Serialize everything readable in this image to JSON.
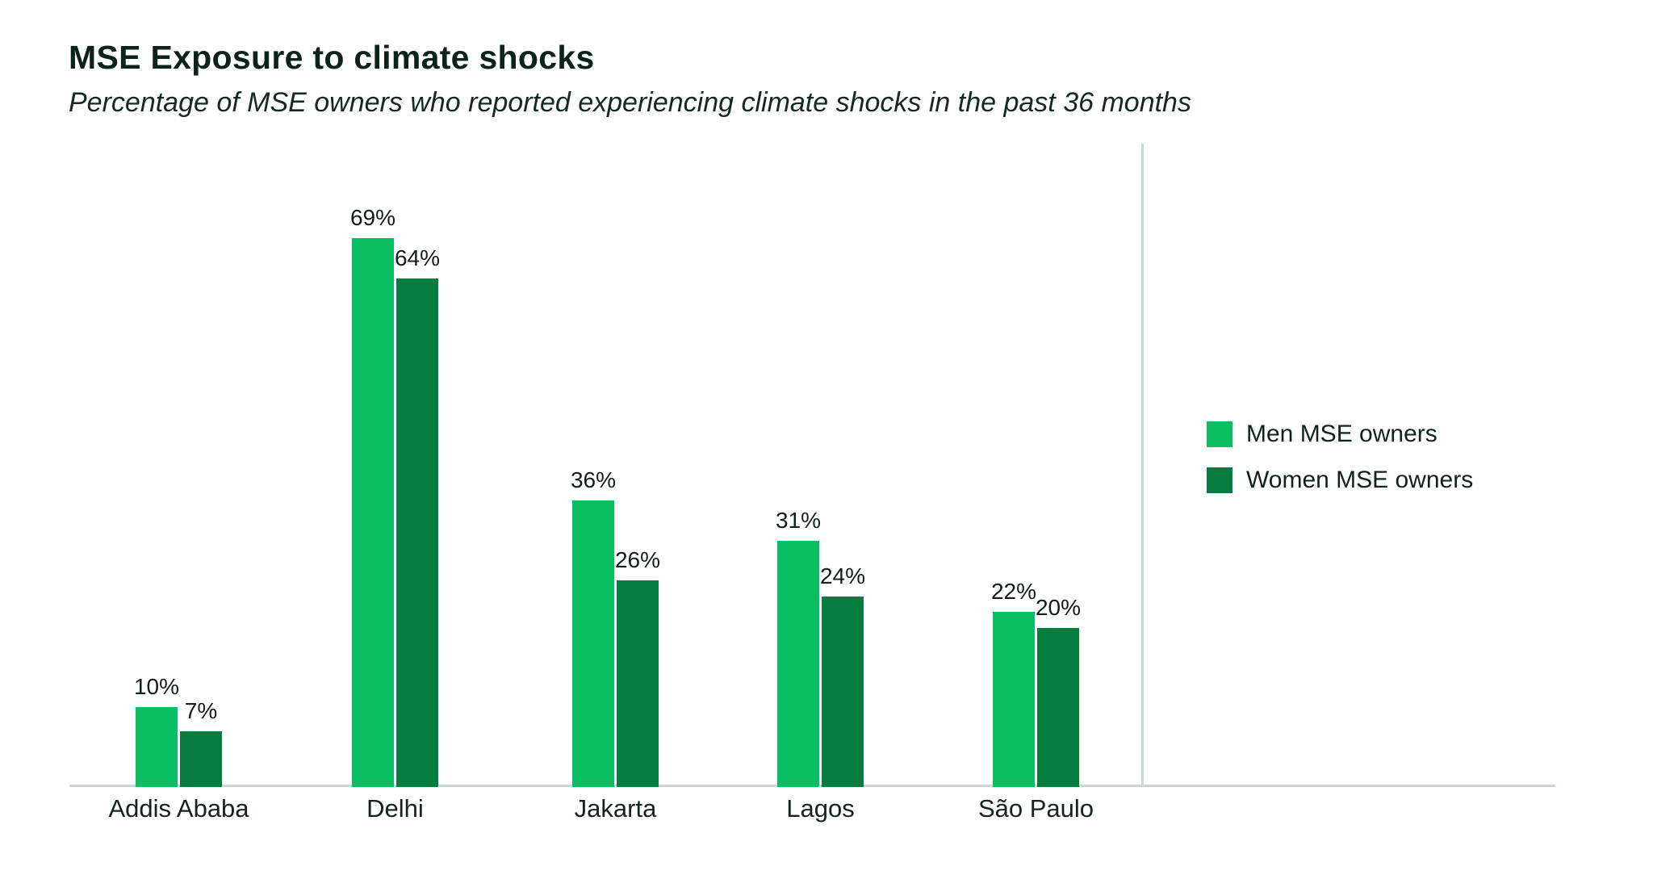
{
  "page": {
    "background": "#ffffff"
  },
  "header": {
    "title": "MSE Exposure to climate shocks",
    "subtitle": "Percentage of MSE owners who reported experiencing climate shocks in the past 36 months"
  },
  "colors": {
    "men_green": "#0abe63",
    "women_green": "#077c3f",
    "axis_gray": "#cbd5d6",
    "text_dark": "#0c231a"
  },
  "legend": {
    "items": [
      {
        "label": "Men MSE owners",
        "color_key": "men_green"
      },
      {
        "label": "Women MSE owners",
        "color_key": "women_green"
      }
    ]
  },
  "chart_data": {
    "type": "bar",
    "title": "MSE Exposure to climate shocks",
    "subtitle": "Percentage of MSE owners who reported experiencing climate shocks in the past 36 months",
    "categories": [
      "Addis Ababa",
      "Delhi",
      "Jakarta",
      "Lagos",
      "São Paulo"
    ],
    "series": [
      {
        "name": "Men MSE owners",
        "color_key": "men_green",
        "values": [
          10,
          69,
          36,
          31,
          22
        ],
        "labels": [
          "10%",
          "69%",
          "36%",
          "31%",
          "22%"
        ]
      },
      {
        "name": "Women MSE owners",
        "color_key": "women_green",
        "values": [
          7,
          64,
          26,
          24,
          20
        ],
        "labels": [
          "7%",
          "64%",
          "26%",
          "24%",
          "20%"
        ]
      }
    ],
    "xlabel": "",
    "ylabel": "",
    "ylim": [
      0,
      100
    ],
    "grid": false,
    "value_labels_shown": true,
    "legend_position": "right"
  }
}
